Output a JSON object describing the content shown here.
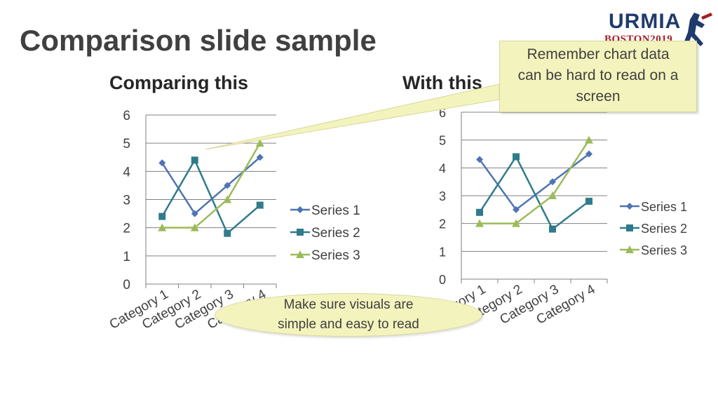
{
  "slide": {
    "title": "Comparison slide sample",
    "left_heading": "Comparing this",
    "right_heading": "With this",
    "callout": {
      "line1": "Remember chart data",
      "line2": "can be hard to read on a",
      "line3": "screen"
    },
    "note": {
      "line1": "Make sure visuals are",
      "line2": "simple and easy to read"
    },
    "logo": {
      "main": "URMIA",
      "sub": "BOSTON2019"
    }
  },
  "colors": {
    "series1": "#4f74b3",
    "series2": "#2f7b8c",
    "series3": "#9bbb59",
    "gridline": "#808080",
    "callout_fill": "#f3f3bd"
  },
  "chart_data": [
    {
      "type": "line",
      "categories": [
        "Category 1",
        "Category 2",
        "Category 3",
        "Category 4"
      ],
      "series": [
        {
          "name": "Series 1",
          "values": [
            4.3,
            2.5,
            3.5,
            4.5
          ],
          "marker": "diamond"
        },
        {
          "name": "Series 2",
          "values": [
            2.4,
            4.4,
            1.8,
            2.8
          ],
          "marker": "square"
        },
        {
          "name": "Series 3",
          "values": [
            2,
            2,
            3,
            5
          ],
          "marker": "triangle"
        }
      ],
      "yticks": [
        0,
        1,
        2,
        3,
        4,
        5,
        6
      ],
      "ylim": [
        0,
        6
      ],
      "grid": true,
      "legend": "right"
    },
    {
      "type": "line",
      "categories": [
        "Category 1",
        "Category 2",
        "Category 3",
        "Category 4"
      ],
      "series": [
        {
          "name": "Series 1",
          "values": [
            4.3,
            2.5,
            3.5,
            4.5
          ],
          "marker": "diamond"
        },
        {
          "name": "Series 2",
          "values": [
            2.4,
            4.4,
            1.8,
            2.8
          ],
          "marker": "square"
        },
        {
          "name": "Series 3",
          "values": [
            2,
            2,
            3,
            5
          ],
          "marker": "triangle"
        }
      ],
      "yticks": [
        0,
        1,
        2,
        3,
        4,
        5,
        6
      ],
      "ylim": [
        0,
        6
      ],
      "grid": true,
      "legend": "right"
    }
  ]
}
